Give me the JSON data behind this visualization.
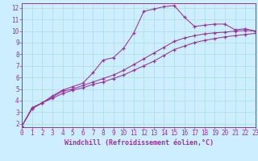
{
  "title": "",
  "xlabel": "Windchill (Refroidissement éolien,°C)",
  "background_color": "#cceeff",
  "line_color": "#993399",
  "grid_color": "#aadddd",
  "x": [
    0,
    1,
    2,
    3,
    4,
    5,
    6,
    7,
    8,
    9,
    10,
    11,
    12,
    13,
    14,
    15,
    16,
    17,
    18,
    19,
    20,
    21,
    22,
    23
  ],
  "line1": [
    1.8,
    3.4,
    3.8,
    4.4,
    4.9,
    5.2,
    5.5,
    6.4,
    7.5,
    7.7,
    8.5,
    9.8,
    11.7,
    11.9,
    12.1,
    12.2,
    11.2,
    10.4,
    10.5,
    10.6,
    10.6,
    10.1,
    10.2,
    10.0
  ],
  "line2": [
    1.8,
    3.3,
    3.8,
    4.3,
    4.8,
    5.0,
    5.3,
    5.6,
    5.9,
    6.2,
    6.6,
    7.1,
    7.6,
    8.1,
    8.6,
    9.1,
    9.4,
    9.6,
    9.75,
    9.85,
    9.9,
    10.0,
    10.05,
    10.0
  ],
  "line3": [
    1.8,
    3.3,
    3.8,
    4.2,
    4.6,
    4.9,
    5.1,
    5.4,
    5.6,
    5.9,
    6.2,
    6.6,
    7.0,
    7.4,
    7.9,
    8.4,
    8.7,
    9.0,
    9.2,
    9.35,
    9.5,
    9.6,
    9.7,
    9.8
  ],
  "xlim": [
    0,
    23
  ],
  "ylim": [
    1.7,
    12.4
  ],
  "yticks": [
    2,
    3,
    4,
    5,
    6,
    7,
    8,
    9,
    10,
    11,
    12
  ],
  "xticks": [
    0,
    1,
    2,
    3,
    4,
    5,
    6,
    7,
    8,
    9,
    10,
    11,
    12,
    13,
    14,
    15,
    16,
    17,
    18,
    19,
    20,
    21,
    22,
    23
  ]
}
